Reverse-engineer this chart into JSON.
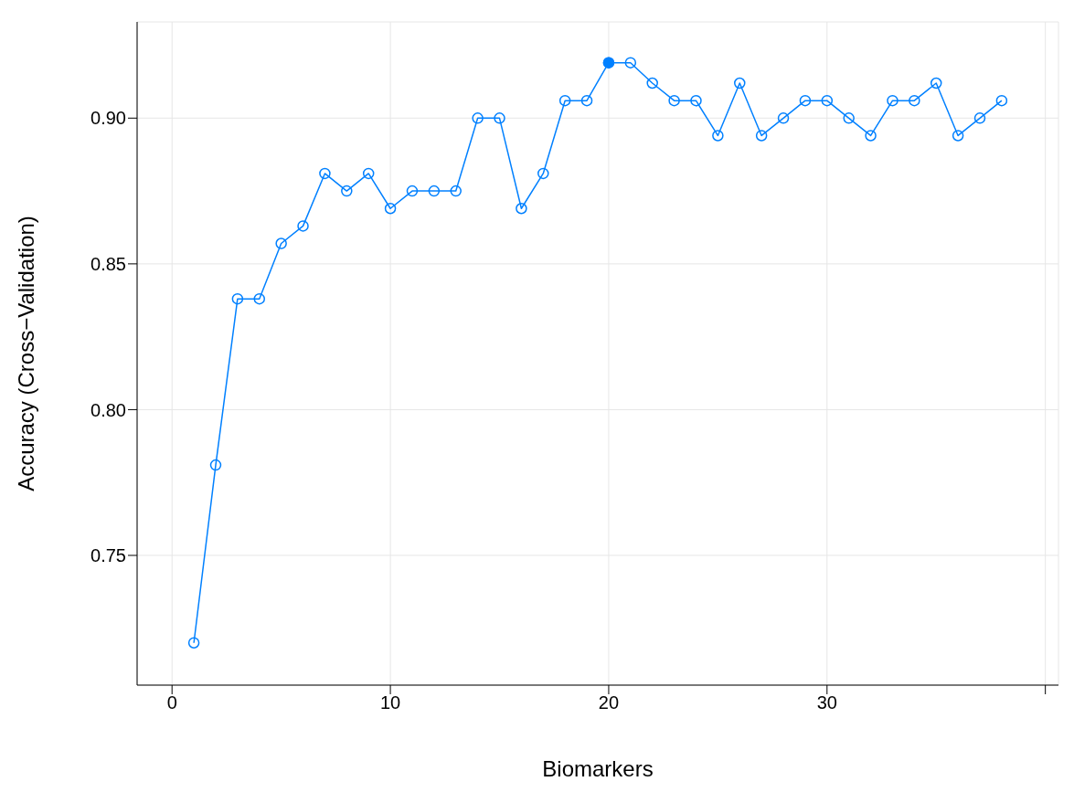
{
  "chart_data": {
    "type": "line",
    "xlabel": "Biomarkers",
    "ylabel": "Accuracy (Cross−Validation)",
    "x": [
      1,
      2,
      3,
      4,
      5,
      6,
      7,
      8,
      9,
      10,
      11,
      12,
      13,
      14,
      15,
      16,
      17,
      18,
      19,
      20,
      21,
      22,
      23,
      24,
      25,
      26,
      27,
      28,
      29,
      30,
      31,
      32,
      33,
      34,
      35,
      36,
      37,
      38
    ],
    "series": [
      {
        "color": "#0080ff",
        "marker": "circle",
        "values": [
          0.72,
          0.781,
          0.838,
          0.838,
          0.857,
          0.863,
          0.881,
          0.875,
          0.881,
          0.869,
          0.875,
          0.875,
          0.875,
          0.9,
          0.9,
          0.869,
          0.881,
          0.906,
          0.906,
          0.919,
          0.919,
          0.912,
          0.906,
          0.906,
          0.894,
          0.912,
          0.894,
          0.9,
          0.906,
          0.906,
          0.9,
          0.894,
          0.906,
          0.906,
          0.912,
          0.894,
          0.9,
          0.906
        ]
      },
      {
        "type": "scatter",
        "color": "#0080ff",
        "marker": "circle",
        "x": [
          20
        ],
        "values": [
          0.919
        ]
      }
    ],
    "xlim": [
      -1.6,
      40.6
    ],
    "xticks": [
      0,
      10,
      20,
      30,
      {
        "value": 40,
        "label": null
      }
    ],
    "ylim": [
      0.7055,
      0.933
    ],
    "yticks": [
      0.75,
      {
        "value": 0.8,
        "label": "0.80"
      },
      0.85,
      {
        "value": 0.9,
        "label": "0.90"
      }
    ],
    "grid": true
  }
}
